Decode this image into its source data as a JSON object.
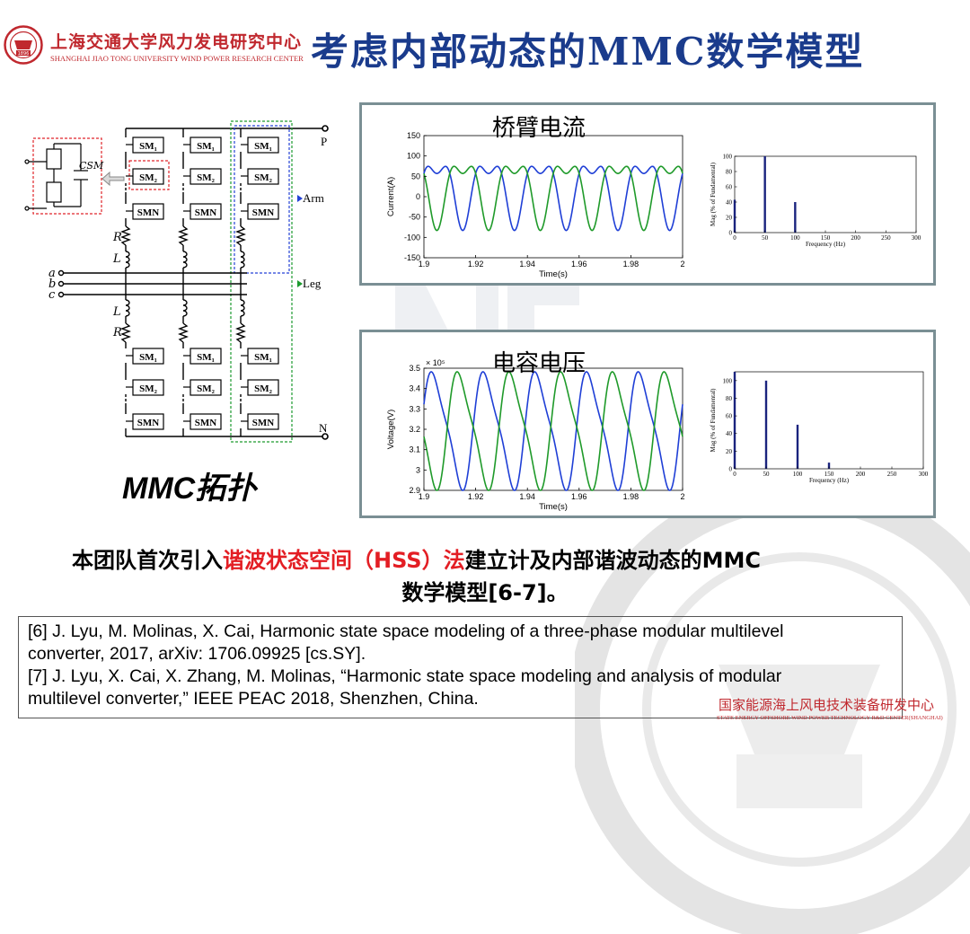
{
  "header": {
    "org_cn": "上海交通大学风力发电研究中心",
    "org_en": "SHANGHAI JIAO TONG UNIVERSITY WIND POWER RESEARCH CENTER",
    "title": "考虑内部动态的MMC数学模型",
    "logo_icon": "university-seal-icon",
    "logo_year": "1896"
  },
  "topology": {
    "caption": "MMC拓扑",
    "sm_labels": [
      "SM₁",
      "SM₂",
      "SMN"
    ],
    "cell_cap": "CSM",
    "node_p": "P",
    "node_n": "N",
    "arm_label": "Arm",
    "leg_label": "Leg",
    "phases": [
      "a",
      "b",
      "c"
    ],
    "r_label": "R",
    "l_label": "L"
  },
  "current_panel": {
    "title": "桥臂电流",
    "chart_data": {
      "type": "line",
      "xlabel": "Time(s)",
      "ylabel": "Current(A)",
      "xlim": [
        1.9,
        2.0
      ],
      "ylim": [
        -150,
        150
      ],
      "x_ticks": [
        "1.9",
        "1.92",
        "1.94",
        "1.96",
        "1.98",
        "2"
      ],
      "y_ticks": [
        "150",
        "100",
        "50",
        "0",
        "-50",
        "-100",
        "-150"
      ],
      "series": [
        {
          "color": "#1f3fd6",
          "model": {
            "dc": 22,
            "amp1": 70,
            "phase1": 0,
            "amp2": 35,
            "phase2": 1.57
          }
        },
        {
          "color": "#1f9a2a",
          "model": {
            "dc": 22,
            "amp1": 70,
            "phase1": 3.1416,
            "amp2": 35,
            "phase2": 1.57
          }
        }
      ]
    },
    "spectrum": {
      "type": "bar",
      "xlabel": "Frequency (Hz)",
      "ylabel": "Mag (% of Fundamental)",
      "xlim": [
        0,
        300
      ],
      "ylim": [
        0,
        100
      ],
      "x_ticks": [
        "0",
        "50",
        "100",
        "150",
        "200",
        "250",
        "300"
      ],
      "y_ticks": [
        "100",
        "80",
        "60",
        "40",
        "20",
        "0"
      ],
      "bars": [
        {
          "x": 0,
          "y": 43
        },
        {
          "x": 50,
          "y": 100
        },
        {
          "x": 100,
          "y": 40
        }
      ]
    }
  },
  "voltage_panel": {
    "title": "电容电压",
    "chart_data": {
      "type": "line",
      "xlabel": "Time(s)",
      "ylabel": "Voltage(V)",
      "multiplier": "× 10⁵",
      "xlim": [
        1.9,
        2.0
      ],
      "ylim": [
        2.9,
        3.5
      ],
      "x_ticks": [
        "1.9",
        "1.92",
        "1.94",
        "1.96",
        "1.98",
        "2"
      ],
      "y_ticks": [
        "3.5",
        "3.4",
        "3.3",
        "3.2",
        "3.1",
        "3",
        "2.9"
      ],
      "series": [
        {
          "color": "#1f3fd6",
          "model": {
            "dc": 3.2,
            "amp1": 0.27,
            "phase1": 0.3,
            "amp2": 0.06,
            "phase2": 0.8
          }
        },
        {
          "color": "#1f9a2a",
          "model": {
            "dc": 3.2,
            "amp1": 0.27,
            "phase1": 3.44,
            "amp2": 0.06,
            "phase2": 0.8
          }
        }
      ]
    },
    "spectrum": {
      "type": "bar",
      "xlabel": "Frequency (Hz)",
      "ylabel": "Mag (% of Fundamental)",
      "xlim": [
        0,
        300
      ],
      "ylim": [
        0,
        110
      ],
      "x_ticks": [
        "0",
        "50",
        "100",
        "150",
        "200",
        "250",
        "300"
      ],
      "y_ticks": [
        "100",
        "80",
        "60",
        "40",
        "20",
        "0"
      ],
      "bars": [
        {
          "x": 0,
          "y": 110
        },
        {
          "x": 50,
          "y": 100
        },
        {
          "x": 100,
          "y": 50
        },
        {
          "x": 150,
          "y": 7
        }
      ]
    }
  },
  "summary": {
    "part1": "本团队首次引入",
    "highlight": "谐波状态空间（HSS）法",
    "part2": "建立计及内部谐波动态的MMC",
    "line2": "数学模型[6-7]。",
    "highlight_color": "#e31e24"
  },
  "references": [
    "[6] J. Lyu, M. Molinas, X. Cai, Harmonic state space modeling of a three-phase modular multilevel",
    "converter, 2017, arXiv: 1706.09925 [cs.SY].",
    "[7] J. Lyu, X. Cai, X. Zhang, M. Molinas, “Harmonic state space modeling and analysis of modular",
    "multilevel converter,” IEEE PEAC 2018, Shenzhen, China."
  ],
  "footer": {
    "cn": "国家能源海上风电技术装备研发中心",
    "en": "STATE ENERGY OFFSHORE WIND POWER TECHNOLOGY R&D CENTER(SHANGHAI)"
  },
  "watermark": {
    "seal_icon": "university-seal-watermark-icon",
    "ne_icon": "ne-logo-watermark-icon"
  }
}
